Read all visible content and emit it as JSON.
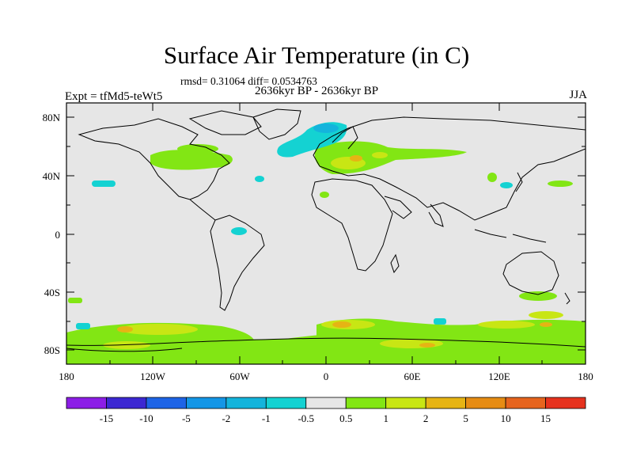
{
  "title": "Surface Air Temperature (in C)",
  "stats": "rmsd= 0.31064 diff= 0.0534763",
  "period": "2636kyr BP - 2636kyr BP",
  "expt": "Expt = tfMd5-teWt5",
  "season": "JJA",
  "lat_ticks": [
    "80N",
    "40N",
    "0",
    "40S",
    "80S"
  ],
  "lon_ticks": [
    "180",
    "120W",
    "60W",
    "0",
    "60E",
    "120E",
    "180"
  ],
  "colorbar": {
    "labels": [
      "-15",
      "-10",
      "-5",
      "-2",
      "-1",
      "-0.5",
      "0.5",
      "1",
      "2",
      "5",
      "10",
      "15"
    ],
    "colors": [
      "#8c1ee6",
      "#3c28d2",
      "#1e64e6",
      "#1496e6",
      "#14b4dc",
      "#14d2d2",
      "#e6e6e6",
      "#82e614",
      "#c8e614",
      "#e6b414",
      "#e68c14",
      "#e6641e",
      "#e6321e"
    ]
  },
  "colors": {
    "background": "#e6e6e6",
    "coast": "#000000"
  }
}
